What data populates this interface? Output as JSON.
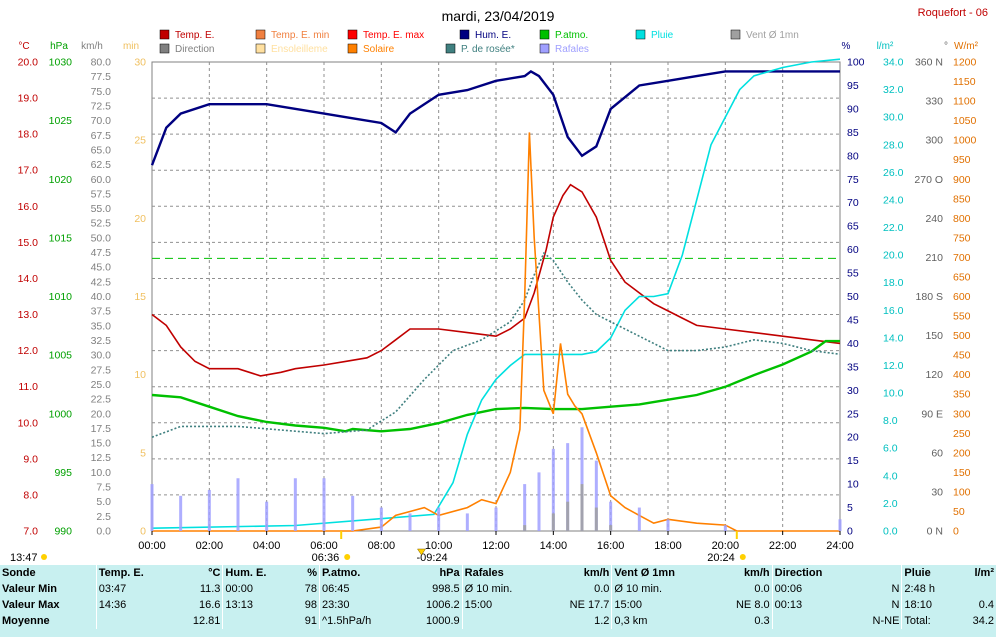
{
  "title": "mardi, 23/04/2019",
  "station": "Roquefort - 06",
  "legend": [
    {
      "label": "Temp. E.",
      "color": "#c00000"
    },
    {
      "label": "Temp. E. min",
      "color": "#f08040"
    },
    {
      "label": "Temp. E. max",
      "color": "#ff0000"
    },
    {
      "label": "Hum. E.",
      "color": "#000080"
    },
    {
      "label": "P.atmo.",
      "color": "#00c000"
    },
    {
      "label": "Pluie",
      "color": "#00e0e0"
    },
    {
      "label": "Vent Ø 1mn",
      "color": "#a0a0a0"
    },
    {
      "label": "Direction",
      "color": "#808080"
    },
    {
      "label": "Ensoleilleme",
      "color": "#ffe0a0"
    },
    {
      "label": "Solaire",
      "color": "#ff8000"
    },
    {
      "label": "P. de rosée*",
      "color": "#408080"
    },
    {
      "label": "Rafales",
      "color": "#a0a0ff"
    }
  ],
  "axes": {
    "temp": {
      "unit": "°C",
      "ticks": [
        "20.0",
        "19.0",
        "18.0",
        "17.0",
        "16.0",
        "15.0",
        "14.0",
        "13.0",
        "12.0",
        "11.0",
        "10.0",
        "9.0",
        "8.0",
        "7.0"
      ],
      "color": "#c00000"
    },
    "press": {
      "unit": "hPa",
      "ticks": [
        "1030",
        "1025",
        "1020",
        "1015",
        "1010",
        "1005",
        "1000",
        "995",
        "990"
      ],
      "color": "#00a000"
    },
    "wind": {
      "unit": "km/h",
      "ticks": [
        "80.0",
        "77.5",
        "75.0",
        "72.5",
        "70.0",
        "67.5",
        "65.0",
        "62.5",
        "60.0",
        "57.5",
        "55.0",
        "52.5",
        "50.0",
        "47.5",
        "45.0",
        "42.5",
        "40.0",
        "37.5",
        "35.0",
        "32.5",
        "30.0",
        "27.5",
        "25.0",
        "22.5",
        "20.0",
        "17.5",
        "15.0",
        "12.5",
        "10.0",
        "7.5",
        "5.0",
        "2.5",
        "0.0"
      ],
      "color": "#808080"
    },
    "sun": {
      "unit": "min",
      "ticks": [
        "30",
        "25",
        "20",
        "15",
        "10",
        "5",
        "0"
      ],
      "color": "#f0c060"
    },
    "hum": {
      "unit": "%",
      "ticks": [
        "100",
        "95",
        "90",
        "85",
        "80",
        "75",
        "70",
        "65",
        "60",
        "55",
        "50",
        "45",
        "40",
        "35",
        "30",
        "25",
        "20",
        "15",
        "10",
        "5",
        "0"
      ],
      "color": "#000080"
    },
    "rain": {
      "unit": "l/m²",
      "ticks": [
        "34.0",
        "32.0",
        "30.0",
        "28.0",
        "26.0",
        "24.0",
        "22.0",
        "20.0",
        "18.0",
        "16.0",
        "14.0",
        "12.0",
        "10.0",
        "8.0",
        "6.0",
        "4.0",
        "2.0",
        "0.0"
      ],
      "color": "#00c0c0"
    },
    "dir": {
      "unit": "°",
      "ticks": [
        "360 N",
        "330",
        "300",
        "270 O",
        "240",
        "210",
        "180 S",
        "150",
        "120",
        "90 E",
        "60",
        "30",
        "0 N"
      ],
      "color": "#606060"
    },
    "solar": {
      "unit": "W/m²",
      "ticks": [
        "1200",
        "1150",
        "1100",
        "1050",
        "1000",
        "950",
        "900",
        "850",
        "800",
        "750",
        "700",
        "650",
        "600",
        "550",
        "500",
        "450",
        "400",
        "350",
        "300",
        "250",
        "200",
        "150",
        "100",
        "50",
        "0"
      ],
      "color": "#e07000"
    },
    "time": {
      "ticks": [
        "00:00",
        "02:00",
        "04:00",
        "06:00",
        "08:00",
        "10:00",
        "12:00",
        "14:00",
        "16:00",
        "18:00",
        "20:00",
        "22:00",
        "24:00"
      ]
    }
  },
  "events": {
    "sunrise": "06:36",
    "sun_peak": "09:24",
    "sunset": "20:24",
    "daylen": "13:47"
  },
  "chart_data": {
    "type": "line",
    "x_range": [
      "00:00",
      "24:00"
    ],
    "series": [
      {
        "name": "Temp. E.",
        "unit": "°C",
        "x": [
          "00:00",
          "00:30",
          "01:00",
          "01:30",
          "02:00",
          "03:00",
          "03:47",
          "04:30",
          "05:00",
          "06:00",
          "06:45",
          "07:30",
          "08:00",
          "08:30",
          "09:00",
          "09:30",
          "10:00",
          "11:00",
          "12:00",
          "12:30",
          "13:00",
          "13:20",
          "13:45",
          "14:00",
          "14:20",
          "14:36",
          "15:00",
          "15:30",
          "16:00",
          "16:30",
          "17:00",
          "17:30",
          "18:00",
          "18:30",
          "19:00",
          "20:00",
          "21:00",
          "22:00",
          "23:00",
          "24:00"
        ],
        "y": [
          13.0,
          12.7,
          12.1,
          11.7,
          11.5,
          11.5,
          11.3,
          11.4,
          11.5,
          11.6,
          11.7,
          11.8,
          12.0,
          12.3,
          12.6,
          12.6,
          12.6,
          12.5,
          12.4,
          12.6,
          12.9,
          13.6,
          14.8,
          15.7,
          16.3,
          16.6,
          16.4,
          15.7,
          14.5,
          13.9,
          13.6,
          13.3,
          13.1,
          12.9,
          12.7,
          12.6,
          12.5,
          12.4,
          12.3,
          12.2
        ]
      },
      {
        "name": "Hum. E.",
        "unit": "%",
        "x": [
          "00:00",
          "00:30",
          "01:00",
          "02:00",
          "03:00",
          "04:00",
          "06:00",
          "07:00",
          "08:00",
          "08:30",
          "09:00",
          "10:00",
          "11:00",
          "12:00",
          "13:00",
          "13:13",
          "13:30",
          "14:00",
          "14:30",
          "15:00",
          "15:30",
          "16:00",
          "17:00",
          "18:00",
          "19:00",
          "20:00",
          "22:00",
          "24:00"
        ],
        "y": [
          78,
          86,
          89,
          91,
          91,
          91,
          89,
          88,
          87,
          85,
          89,
          93,
          94,
          96,
          97,
          98,
          97,
          93,
          84,
          80,
          82,
          90,
          95,
          96,
          97,
          98,
          98,
          98
        ]
      },
      {
        "name": "P.atmo.",
        "unit": "hPa",
        "x": [
          "00:00",
          "01:00",
          "02:00",
          "03:00",
          "04:00",
          "05:00",
          "06:00",
          "06:45",
          "07:00",
          "08:00",
          "09:00",
          "10:00",
          "11:00",
          "12:00",
          "13:00",
          "14:00",
          "15:00",
          "16:00",
          "17:00",
          "18:00",
          "19:00",
          "20:00",
          "21:00",
          "22:00",
          "23:00",
          "23:30",
          "24:00"
        ],
        "y": [
          1001.6,
          1001.4,
          1000.6,
          999.8,
          999.3,
          999.0,
          998.8,
          998.5,
          998.7,
          998.5,
          998.7,
          999.2,
          999.9,
          1000.4,
          1000.5,
          1000.4,
          1000.4,
          1000.6,
          1000.8,
          1001.2,
          1001.6,
          1002.3,
          1003.3,
          1004.2,
          1005.3,
          1006.2,
          1006.2
        ]
      },
      {
        "name": "Pluie",
        "unit": "l/m²",
        "x": [
          "00:00",
          "05:00",
          "09:50",
          "10:30",
          "11:00",
          "11:30",
          "12:00",
          "12:30",
          "13:00",
          "13:30",
          "14:00",
          "14:30",
          "15:00",
          "15:30",
          "16:00",
          "16:30",
          "17:00",
          "17:30",
          "18:00",
          "18:30",
          "19:00",
          "19:30",
          "20:00",
          "20:30",
          "21:00",
          "22:00",
          "23:00",
          "24:00"
        ],
        "y": [
          0.2,
          0.4,
          1.2,
          3.5,
          7,
          9.5,
          11,
          12,
          12.8,
          12.8,
          12.8,
          12.8,
          12.8,
          13,
          14,
          16,
          17,
          17,
          17.2,
          20,
          24,
          28,
          30,
          32,
          33,
          33.6,
          34,
          34.2
        ]
      },
      {
        "name": "P. de rosée*",
        "unit": "°C",
        "x": [
          "00:00",
          "01:00",
          "03:00",
          "06:00",
          "07:30",
          "08:30",
          "09:30",
          "10:30",
          "11:30",
          "12:30",
          "13:00",
          "13:20",
          "13:40",
          "14:00",
          "14:30",
          "15:00",
          "15:30",
          "16:00",
          "17:00",
          "18:00",
          "19:00",
          "20:00",
          "21:00",
          "22:00",
          "23:00",
          "24:00"
        ],
        "y": [
          9.6,
          9.9,
          9.9,
          9.7,
          9.8,
          10.3,
          11.2,
          12.0,
          12.3,
          12.8,
          13.4,
          14.1,
          14.7,
          14.5,
          13.9,
          13.4,
          13.0,
          12.8,
          12.4,
          12.0,
          12.0,
          12.1,
          12.3,
          12.2,
          12.0,
          11.9
        ]
      },
      {
        "name": "Solaire",
        "unit": "W/m²",
        "x": [
          "00:00",
          "07:00",
          "08:00",
          "08:30",
          "09:00",
          "09:30",
          "10:00",
          "11:00",
          "11:30",
          "12:00",
          "12:30",
          "12:50",
          "13:00",
          "13:10",
          "13:20",
          "13:40",
          "14:00",
          "14:15",
          "14:30",
          "14:45",
          "15:00",
          "15:30",
          "16:00",
          "16:30",
          "17:00",
          "17:30",
          "18:00",
          "19:00",
          "20:00",
          "20:24",
          "21:00",
          "24:00"
        ],
        "y": [
          0,
          0,
          10,
          40,
          50,
          60,
          40,
          60,
          80,
          70,
          150,
          260,
          600,
          1020,
          750,
          360,
          300,
          480,
          350,
          320,
          300,
          200,
          90,
          60,
          40,
          20,
          30,
          20,
          15,
          0,
          0,
          0
        ]
      },
      {
        "name": "Rafales",
        "unit": "km/h",
        "x": [
          "00:00",
          "01:00",
          "02:00",
          "03:00",
          "04:00",
          "05:00",
          "06:00",
          "07:00",
          "08:00",
          "09:00",
          "10:00",
          "11:00",
          "12:00",
          "13:00",
          "13:30",
          "14:00",
          "14:30",
          "15:00",
          "15:30",
          "16:00",
          "17:00",
          "18:00",
          "20:00",
          "22:00",
          "24:00"
        ],
        "y": [
          8,
          6,
          7,
          9,
          5,
          9,
          9,
          6,
          4,
          3,
          4,
          3,
          4,
          8,
          10,
          14,
          15,
          17.7,
          12,
          5,
          4,
          2,
          1,
          0,
          2
        ]
      },
      {
        "name": "Vent Ø 1mn",
        "unit": "km/h",
        "x": [
          "00:00",
          "12:00",
          "13:00",
          "14:00",
          "14:30",
          "15:00",
          "15:30",
          "16:00",
          "24:00"
        ],
        "y": [
          0,
          0,
          1,
          3,
          5,
          8,
          4,
          1,
          0
        ]
      }
    ]
  },
  "stats": {
    "headers": [
      "Sonde",
      "Temp. E.",
      "°C",
      "Hum. E.",
      "%",
      "P.atmo.",
      "hPa",
      "Rafales",
      "km/h",
      "Vent Ø 1mn",
      "km/h",
      "Direction",
      "",
      "Pluie",
      "l/m²"
    ],
    "rows": [
      [
        "Valeur Min",
        "03:47",
        "11.3",
        "00:00",
        "78",
        "06:45",
        "998.5",
        "Ø 10 min.",
        "0.0",
        "Ø 10 min.",
        "0.0",
        "00:06",
        "N",
        "2:48 h",
        ""
      ],
      [
        "Valeur Max",
        "14:36",
        "16.6",
        "13:13",
        "98",
        "23:30",
        "1006.2",
        "15:00",
        "NE 17.7",
        "15:00",
        "NE 8.0",
        "00:13",
        "N",
        "18:10",
        "0.4"
      ],
      [
        "Moyenne",
        "",
        "12.81",
        "",
        "91",
        "^1.5hPa/h",
        "1000.9",
        "",
        "1.2",
        "0,3 km",
        "0.3",
        "",
        "N-NE",
        "Total:",
        "34.2"
      ]
    ]
  }
}
